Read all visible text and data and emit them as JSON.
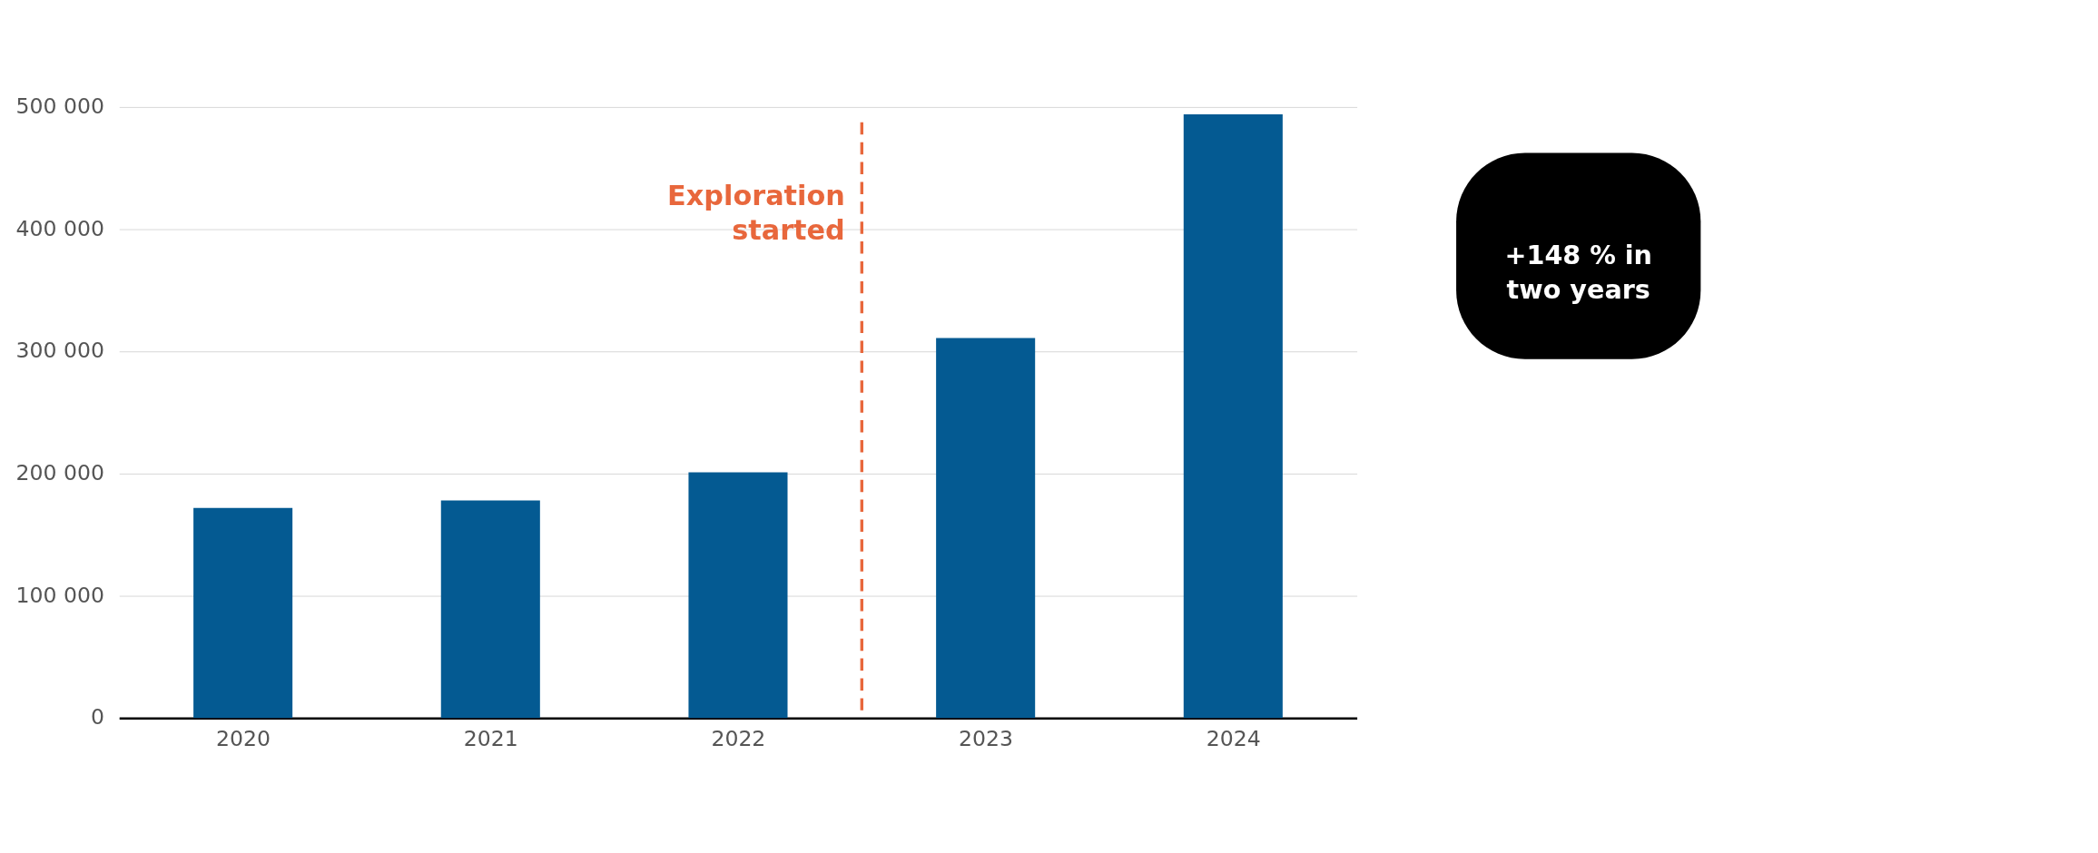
{
  "chart_data": {
    "type": "bar",
    "x": [
      2020,
      2021,
      2022,
      2023,
      2024
    ],
    "values": [
      172000,
      178000,
      201000,
      311000,
      494000
    ],
    "color": "#045a92",
    "xlim": [
      2019.5,
      2024.5
    ],
    "xticks": [
      2020,
      2021,
      2022,
      2023,
      2024
    ],
    "ylim": [
      0,
      500000
    ],
    "yticks": [
      {
        "value": 0,
        "label": "0"
      },
      {
        "value": 100000,
        "label": "100 000"
      },
      {
        "value": 200000,
        "label": "200 000"
      },
      {
        "value": 300000,
        "label": "300 000"
      },
      {
        "value": 400000,
        "label": "400 000"
      },
      {
        "value": 500000,
        "label": "500 000"
      }
    ],
    "grid": "y",
    "ref_lines": [
      {
        "axis": "x",
        "value": 2022.5,
        "label": "Exploration started",
        "color": "#e8673c",
        "line_style": "dashed"
      }
    ],
    "annotations": [
      "+148 % in two years"
    ]
  }
}
